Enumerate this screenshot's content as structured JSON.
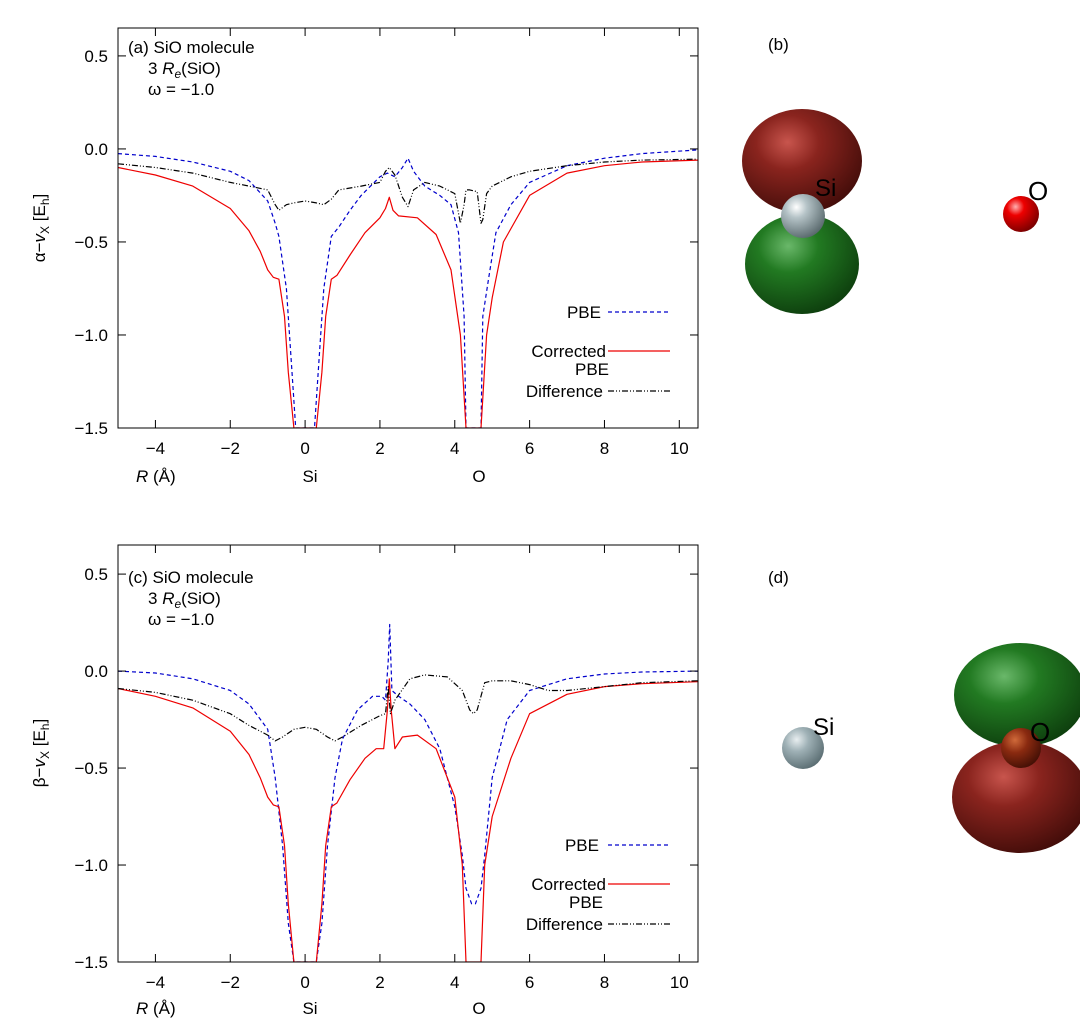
{
  "chart_data": [
    {
      "panel": "(a)",
      "type": "line",
      "annotations": [
        "(a) SiO molecule",
        "3 R_e(SiO)",
        "ω = −1.0"
      ],
      "xlabel": "R (Å)",
      "ylabel": "α−v_X [E_h]",
      "xlim": [
        -5,
        10.5
      ],
      "ylim": [
        -1.5,
        0.65
      ],
      "x_ticks": [
        -4,
        -2,
        0,
        2,
        4,
        6,
        8,
        10
      ],
      "y_ticks": [
        0.5,
        0.0,
        -0.5,
        -1.0,
        -1.5
      ],
      "atom_markers": [
        {
          "label": "Si",
          "x": 0
        },
        {
          "label": "O",
          "x": 4.5
        }
      ],
      "legend_position": "bottom-right",
      "series": [
        {
          "name": "PBE",
          "color": "#0000cc",
          "dash": "dashed",
          "x": [
            -5,
            -4,
            -3,
            -2,
            -1.5,
            -1,
            -0.8,
            -0.7,
            -0.5,
            -0.35,
            -0.25,
            0.25,
            0.35,
            0.5,
            0.7,
            0.9,
            1.2,
            1.5,
            2.0,
            2.2,
            2.4,
            2.6,
            2.75,
            2.9,
            3.2,
            3.6,
            3.9,
            4.1,
            4.25,
            4.3,
            4.7,
            4.75,
            4.9,
            5.1,
            5.5,
            6,
            7,
            8,
            9,
            10.5
          ],
          "y": [
            -0.025,
            -0.04,
            -0.07,
            -0.12,
            -0.17,
            -0.28,
            -0.4,
            -0.47,
            -0.75,
            -1.2,
            -1.5,
            -1.5,
            -1.2,
            -0.75,
            -0.47,
            -0.42,
            -0.33,
            -0.25,
            -0.15,
            -0.13,
            -0.15,
            -0.1,
            -0.05,
            -0.12,
            -0.2,
            -0.25,
            -0.3,
            -0.45,
            -0.9,
            -1.5,
            -1.5,
            -0.9,
            -0.7,
            -0.45,
            -0.3,
            -0.18,
            -0.09,
            -0.05,
            -0.025,
            -0.005
          ]
        },
        {
          "name": "Corrected PBE",
          "color": "#ee0000",
          "dash": "solid",
          "x": [
            -5,
            -4,
            -3,
            -2,
            -1.5,
            -1.2,
            -1.0,
            -0.85,
            -0.7,
            -0.55,
            -0.45,
            -0.3,
            0.3,
            0.45,
            0.55,
            0.7,
            0.85,
            1.2,
            1.6,
            2.0,
            2.15,
            2.25,
            2.35,
            2.5,
            3.0,
            3.5,
            3.9,
            4.15,
            4.3,
            4.7,
            4.85,
            5.0,
            5.3,
            6,
            7,
            8,
            9,
            10.5
          ],
          "y": [
            -0.1,
            -0.14,
            -0.2,
            -0.32,
            -0.44,
            -0.55,
            -0.65,
            -0.69,
            -0.7,
            -0.9,
            -1.2,
            -1.5,
            -1.5,
            -1.2,
            -0.9,
            -0.7,
            -0.68,
            -0.57,
            -0.45,
            -0.37,
            -0.32,
            -0.26,
            -0.33,
            -0.36,
            -0.37,
            -0.46,
            -0.65,
            -1.0,
            -1.5,
            -1.5,
            -1.0,
            -0.8,
            -0.5,
            -0.25,
            -0.13,
            -0.09,
            -0.07,
            -0.06
          ]
        },
        {
          "name": "Difference",
          "color": "#000000",
          "dash": "dashdot",
          "x": [
            -5,
            -4,
            -3,
            -2,
            -1.5,
            -1.0,
            -0.8,
            -0.7,
            -0.5,
            -0.3,
            0,
            0.3,
            0.5,
            0.7,
            0.9,
            1.5,
            2.0,
            2.15,
            2.25,
            2.4,
            2.6,
            2.75,
            2.9,
            3.2,
            3.6,
            4.0,
            4.15,
            4.25,
            4.3,
            4.4,
            4.6,
            4.7,
            4.75,
            4.85,
            5.0,
            5.5,
            6,
            7,
            8,
            9,
            10.5
          ],
          "y": [
            -0.08,
            -0.1,
            -0.13,
            -0.18,
            -0.2,
            -0.22,
            -0.3,
            -0.33,
            -0.3,
            -0.29,
            -0.28,
            -0.29,
            -0.3,
            -0.27,
            -0.22,
            -0.2,
            -0.18,
            -0.12,
            -0.1,
            -0.14,
            -0.26,
            -0.31,
            -0.22,
            -0.18,
            -0.2,
            -0.24,
            -0.4,
            -0.3,
            -0.22,
            -0.22,
            -0.23,
            -0.4,
            -0.38,
            -0.24,
            -0.2,
            -0.15,
            -0.12,
            -0.09,
            -0.07,
            -0.06,
            -0.055
          ]
        }
      ]
    },
    {
      "panel": "(c)",
      "type": "line",
      "annotations": [
        "(c) SiO molecule",
        "3 R_e(SiO)",
        "ω = −1.0"
      ],
      "xlabel": "R (Å)",
      "ylabel": "β−v_X [E_h]",
      "xlim": [
        -5,
        10.5
      ],
      "ylim": [
        -1.5,
        0.65
      ],
      "x_ticks": [
        -4,
        -2,
        0,
        2,
        4,
        6,
        8,
        10
      ],
      "y_ticks": [
        0.5,
        0.0,
        -0.5,
        -1.0,
        -1.5
      ],
      "atom_markers": [
        {
          "label": "Si",
          "x": 0
        },
        {
          "label": "O",
          "x": 4.5
        }
      ],
      "legend_position": "bottom-right",
      "series": [
        {
          "name": "PBE",
          "color": "#0000cc",
          "dash": "dashed",
          "x": [
            -5,
            -4,
            -3,
            -2,
            -1.5,
            -1,
            -0.8,
            -0.6,
            -0.45,
            -0.3,
            0.3,
            0.45,
            0.6,
            0.8,
            1.0,
            1.4,
            1.8,
            2.05,
            2.15,
            2.22,
            2.26,
            2.32,
            2.5,
            2.8,
            3.2,
            3.6,
            4.0,
            4.2,
            4.3,
            4.45,
            4.55,
            4.7,
            4.8,
            5.0,
            5.4,
            6,
            7,
            8,
            9,
            10.5
          ],
          "y": [
            0.0,
            -0.01,
            -0.04,
            -0.1,
            -0.17,
            -0.3,
            -0.55,
            -0.9,
            -1.3,
            -1.5,
            -1.5,
            -1.3,
            -0.9,
            -0.55,
            -0.35,
            -0.2,
            -0.13,
            -0.13,
            -0.15,
            0.05,
            0.24,
            -0.1,
            -0.13,
            -0.17,
            -0.25,
            -0.4,
            -0.7,
            -0.95,
            -1.12,
            -1.2,
            -1.2,
            -1.12,
            -0.95,
            -0.55,
            -0.25,
            -0.1,
            -0.04,
            -0.015,
            -0.005,
            0.0
          ]
        },
        {
          "name": "Corrected PBE",
          "color": "#ee0000",
          "dash": "solid",
          "x": [
            -5,
            -4,
            -3,
            -2,
            -1.5,
            -1.2,
            -1.0,
            -0.85,
            -0.7,
            -0.55,
            -0.45,
            -0.3,
            0.3,
            0.45,
            0.55,
            0.7,
            0.85,
            1.2,
            1.6,
            1.9,
            2.1,
            2.2,
            2.25,
            2.3,
            2.4,
            2.6,
            3.0,
            3.5,
            4.0,
            4.2,
            4.3,
            4.7,
            4.8,
            5.0,
            5.5,
            6,
            7,
            8,
            9,
            10.5
          ],
          "y": [
            -0.09,
            -0.13,
            -0.19,
            -0.31,
            -0.43,
            -0.55,
            -0.65,
            -0.69,
            -0.7,
            -0.9,
            -1.2,
            -1.5,
            -1.5,
            -1.2,
            -0.9,
            -0.7,
            -0.68,
            -0.56,
            -0.45,
            -0.4,
            -0.4,
            -0.2,
            -0.04,
            -0.2,
            -0.4,
            -0.34,
            -0.33,
            -0.4,
            -0.65,
            -1.0,
            -1.5,
            -1.5,
            -1.0,
            -0.75,
            -0.45,
            -0.22,
            -0.12,
            -0.08,
            -0.065,
            -0.055
          ]
        },
        {
          "name": "Difference",
          "color": "#000000",
          "dash": "dashdot",
          "x": [
            -5,
            -4,
            -3,
            -2,
            -1.5,
            -1.0,
            -0.8,
            -0.6,
            -0.3,
            0,
            0.3,
            0.6,
            0.8,
            1.0,
            1.5,
            2.0,
            2.15,
            2.22,
            2.28,
            2.4,
            2.8,
            3.2,
            3.8,
            4.2,
            4.4,
            4.5,
            4.6,
            4.8,
            5.0,
            5.5,
            6,
            6.5,
            7,
            8,
            9,
            10.5
          ],
          "y": [
            -0.09,
            -0.11,
            -0.15,
            -0.22,
            -0.28,
            -0.33,
            -0.36,
            -0.34,
            -0.3,
            -0.29,
            -0.3,
            -0.34,
            -0.36,
            -0.34,
            -0.28,
            -0.23,
            -0.22,
            -0.08,
            -0.22,
            -0.15,
            -0.04,
            -0.02,
            -0.03,
            -0.1,
            -0.2,
            -0.22,
            -0.2,
            -0.06,
            -0.05,
            -0.05,
            -0.07,
            -0.1,
            -0.1,
            -0.08,
            -0.06,
            -0.05
          ]
        }
      ]
    }
  ],
  "panels": {
    "b": {
      "label": "(b)",
      "atoms": [
        "Si",
        "O"
      ]
    },
    "d": {
      "label": "(d)",
      "atoms": [
        "Si",
        "O"
      ]
    }
  },
  "colors": {
    "lobe_red": "#7a1a16",
    "lobe_green": "#1f6e1f",
    "atom_si": "#9aabb0",
    "atom_o": "#e60000"
  }
}
